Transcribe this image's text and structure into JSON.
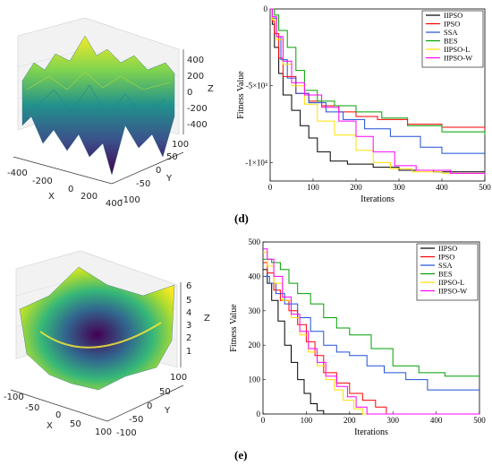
{
  "panel_d": {
    "label": "(d)",
    "surface": {
      "xlabel": "X",
      "ylabel": "Y",
      "zlabel": "Z",
      "x_ticks": [
        "-400",
        "-200",
        "0",
        "200",
        "400"
      ],
      "y_ticks": [
        "100",
        "50",
        "0",
        "-50",
        "-100"
      ],
      "z_ticks": [
        "400",
        "200",
        "0",
        "-200",
        "-400"
      ]
    }
  },
  "panel_e": {
    "label": "(e)",
    "surface": {
      "xlabel": "X",
      "ylabel": "Y",
      "zlabel": "Z",
      "x_ticks": [
        "-100",
        "-50",
        "0",
        "50",
        "100"
      ],
      "y_ticks": [
        "100",
        "50",
        "0",
        "-50",
        "-100"
      ],
      "z_ticks": [
        "6",
        "5",
        "4",
        "3",
        "2",
        "1"
      ]
    }
  },
  "chart_data": [
    {
      "id": "d-convergence",
      "type": "line",
      "step": true,
      "xlabel": "Iterations",
      "ylabel": "Fitness Value",
      "xlim": [
        0,
        500
      ],
      "ylim": [
        -11200,
        0
      ],
      "x_ticks": [
        0,
        100,
        200,
        300,
        400,
        500
      ],
      "y_ticks": [
        {
          "v": 0,
          "label": "0"
        },
        {
          "v": -5000,
          "label": "-5×10³"
        },
        {
          "v": -10000,
          "label": "-1×10⁴"
        }
      ],
      "legend_position": "top-right",
      "series": [
        {
          "name": "IIPSO",
          "color": "#000000",
          "points": [
            [
              0,
              0
            ],
            [
              5,
              -1000
            ],
            [
              10,
              -2500
            ],
            [
              20,
              -4200
            ],
            [
              30,
              -5600
            ],
            [
              50,
              -6600
            ],
            [
              70,
              -7600
            ],
            [
              90,
              -8400
            ],
            [
              110,
              -9300
            ],
            [
              140,
              -9900
            ],
            [
              180,
              -10100
            ],
            [
              240,
              -10300
            ],
            [
              300,
              -10500
            ],
            [
              380,
              -10600
            ],
            [
              500,
              -10600
            ]
          ]
        },
        {
          "name": "IPSO",
          "color": "#ff0000",
          "points": [
            [
              0,
              0
            ],
            [
              5,
              -800
            ],
            [
              10,
              -1600
            ],
            [
              20,
              -3200
            ],
            [
              30,
              -4400
            ],
            [
              60,
              -5500
            ],
            [
              90,
              -6000
            ],
            [
              120,
              -6300
            ],
            [
              160,
              -6700
            ],
            [
              200,
              -7000
            ],
            [
              250,
              -7200
            ],
            [
              320,
              -7500
            ],
            [
              400,
              -7700
            ],
            [
              500,
              -7900
            ]
          ]
        },
        {
          "name": "SSA",
          "color": "#1f4fd6",
          "points": [
            [
              0,
              0
            ],
            [
              5,
              -600
            ],
            [
              15,
              -1800
            ],
            [
              25,
              -3300
            ],
            [
              40,
              -4500
            ],
            [
              60,
              -5500
            ],
            [
              90,
              -6100
            ],
            [
              130,
              -6700
            ],
            [
              170,
              -7200
            ],
            [
              220,
              -7800
            ],
            [
              280,
              -8300
            ],
            [
              350,
              -9000
            ],
            [
              400,
              -9400
            ],
            [
              500,
              -9400
            ]
          ]
        },
        {
          "name": "BES",
          "color": "#00a000",
          "points": [
            [
              0,
              0
            ],
            [
              10,
              -400
            ],
            [
              20,
              -1400
            ],
            [
              40,
              -2500
            ],
            [
              60,
              -4000
            ],
            [
              80,
              -5300
            ],
            [
              110,
              -6000
            ],
            [
              150,
              -6300
            ],
            [
              200,
              -6700
            ],
            [
              260,
              -7100
            ],
            [
              320,
              -7600
            ],
            [
              400,
              -8000
            ],
            [
              500,
              -8200
            ]
          ]
        },
        {
          "name": "IIPSO-L",
          "color": "#ffe000",
          "points": [
            [
              0,
              0
            ],
            [
              5,
              -700
            ],
            [
              15,
              -2000
            ],
            [
              30,
              -3600
            ],
            [
              50,
              -5000
            ],
            [
              80,
              -6200
            ],
            [
              110,
              -7300
            ],
            [
              150,
              -8200
            ],
            [
              200,
              -9200
            ],
            [
              240,
              -10000
            ],
            [
              280,
              -10400
            ],
            [
              330,
              -10600
            ],
            [
              400,
              -10700
            ],
            [
              500,
              -10700
            ]
          ]
        },
        {
          "name": "IIPSO-W",
          "color": "#ff00ff",
          "points": [
            [
              0,
              0
            ],
            [
              5,
              -500
            ],
            [
              15,
              -1800
            ],
            [
              30,
              -3400
            ],
            [
              50,
              -4800
            ],
            [
              80,
              -5600
            ],
            [
              120,
              -6400
            ],
            [
              160,
              -7300
            ],
            [
              200,
              -8300
            ],
            [
              240,
              -9300
            ],
            [
              290,
              -10200
            ],
            [
              340,
              -10500
            ],
            [
              420,
              -10700
            ],
            [
              500,
              -10800
            ]
          ]
        }
      ]
    },
    {
      "id": "e-convergence",
      "type": "line",
      "step": true,
      "xlabel": "Iterations",
      "ylabel": "Fitness Value",
      "xlim": [
        0,
        500
      ],
      "ylim": [
        0,
        500
      ],
      "x_ticks": [
        0,
        100,
        200,
        300,
        400,
        500
      ],
      "y_ticks": [
        {
          "v": 0,
          "label": "0"
        },
        {
          "v": 100,
          "label": "100"
        },
        {
          "v": 200,
          "label": "200"
        },
        {
          "v": 300,
          "label": "300"
        },
        {
          "v": 400,
          "label": "400"
        },
        {
          "v": 500,
          "label": "500"
        }
      ],
      "legend_position": "top-right",
      "series": [
        {
          "name": "IIPSO",
          "color": "#000000",
          "points": [
            [
              0,
              420
            ],
            [
              10,
              380
            ],
            [
              20,
              330
            ],
            [
              35,
              270
            ],
            [
              50,
              200
            ],
            [
              65,
              150
            ],
            [
              80,
              100
            ],
            [
              95,
              60
            ],
            [
              110,
              30
            ],
            [
              125,
              10
            ],
            [
              140,
              0
            ],
            [
              500,
              0
            ]
          ]
        },
        {
          "name": "IPSO",
          "color": "#ff0000",
          "points": [
            [
              0,
              440
            ],
            [
              10,
              410
            ],
            [
              25,
              360
            ],
            [
              40,
              330
            ],
            [
              60,
              300
            ],
            [
              80,
              260
            ],
            [
              100,
              210
            ],
            [
              120,
              170
            ],
            [
              140,
              120
            ],
            [
              170,
              90
            ],
            [
              200,
              60
            ],
            [
              230,
              40
            ],
            [
              260,
              20
            ],
            [
              285,
              0
            ],
            [
              500,
              0
            ]
          ]
        },
        {
          "name": "SSA",
          "color": "#1f4fd6",
          "points": [
            [
              0,
              400
            ],
            [
              15,
              380
            ],
            [
              30,
              350
            ],
            [
              50,
              320
            ],
            [
              80,
              280
            ],
            [
              110,
              240
            ],
            [
              140,
              200
            ],
            [
              170,
              180
            ],
            [
              200,
              170
            ],
            [
              240,
              140
            ],
            [
              280,
              120
            ],
            [
              330,
              100
            ],
            [
              380,
              70
            ],
            [
              500,
              70
            ]
          ]
        },
        {
          "name": "BES",
          "color": "#00a000",
          "points": [
            [
              0,
              450
            ],
            [
              20,
              440
            ],
            [
              40,
              420
            ],
            [
              60,
              380
            ],
            [
              80,
              350
            ],
            [
              110,
              320
            ],
            [
              140,
              280
            ],
            [
              170,
              250
            ],
            [
              200,
              230
            ],
            [
              250,
              190
            ],
            [
              300,
              140
            ],
            [
              360,
              120
            ],
            [
              420,
              110
            ],
            [
              500,
              110
            ]
          ]
        },
        {
          "name": "IIPSO-L",
          "color": "#ffe000",
          "points": [
            [
              0,
              470
            ],
            [
              10,
              430
            ],
            [
              25,
              380
            ],
            [
              45,
              330
            ],
            [
              65,
              280
            ],
            [
              85,
              230
            ],
            [
              105,
              180
            ],
            [
              125,
              140
            ],
            [
              145,
              100
            ],
            [
              165,
              70
            ],
            [
              185,
              40
            ],
            [
              210,
              15
            ],
            [
              230,
              0
            ],
            [
              500,
              0
            ]
          ]
        },
        {
          "name": "IIPSO-W",
          "color": "#ff00ff",
          "points": [
            [
              0,
              480
            ],
            [
              10,
              450
            ],
            [
              25,
              400
            ],
            [
              45,
              340
            ],
            [
              65,
              290
            ],
            [
              85,
              240
            ],
            [
              105,
              190
            ],
            [
              125,
              150
            ],
            [
              145,
              110
            ],
            [
              170,
              80
            ],
            [
              195,
              50
            ],
            [
              215,
              20
            ],
            [
              240,
              0
            ],
            [
              500,
              0
            ]
          ]
        }
      ]
    }
  ]
}
